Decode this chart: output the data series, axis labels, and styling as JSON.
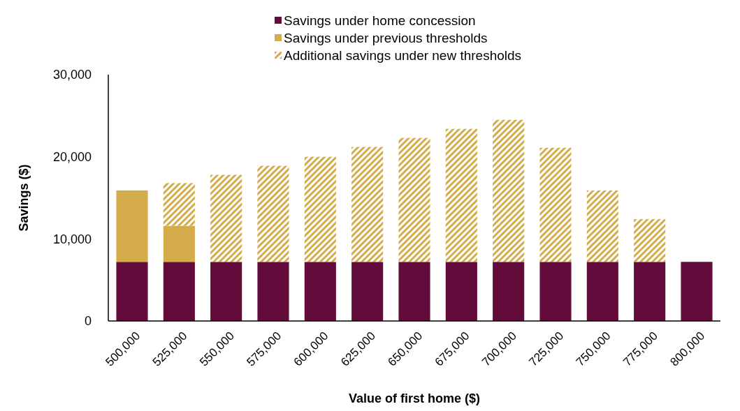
{
  "chart_data": {
    "type": "bar",
    "stacked": true,
    "xlabel": "Value of first home ($)",
    "ylabel": "Savings ($)",
    "categories": [
      "500,000",
      "525,000",
      "550,000",
      "575,000",
      "600,000",
      "625,000",
      "650,000",
      "675,000",
      "700,000",
      "725,000",
      "750,000",
      "775,000",
      "800,000"
    ],
    "series": [
      {
        "name": "Savings under home concession",
        "color": "#630b3b",
        "values": [
          7200,
          7200,
          7200,
          7200,
          7200,
          7200,
          7200,
          7200,
          7200,
          7200,
          7200,
          7200,
          7200
        ]
      },
      {
        "name": "Savings under previous thresholds",
        "color": "#d4ac4c",
        "values": [
          8700,
          4400,
          null,
          null,
          null,
          null,
          null,
          null,
          null,
          null,
          null,
          null,
          null
        ]
      },
      {
        "name": "Additional savings under new thresholds",
        "color": "#d4ac4c",
        "values": [
          null,
          5200,
          10600,
          11700,
          12800,
          14000,
          15100,
          16200,
          17300,
          13900,
          8700,
          5200,
          null
        ]
      }
    ],
    "ylim": [
      0,
      30000
    ],
    "yticks": [
      {
        "value": 0,
        "label": "0"
      },
      {
        "value": 10000,
        "label": "10,000"
      },
      {
        "value": 20000,
        "label": "20,000"
      },
      {
        "value": 30000,
        "label": "30,000"
      }
    ],
    "legend": "top"
  }
}
